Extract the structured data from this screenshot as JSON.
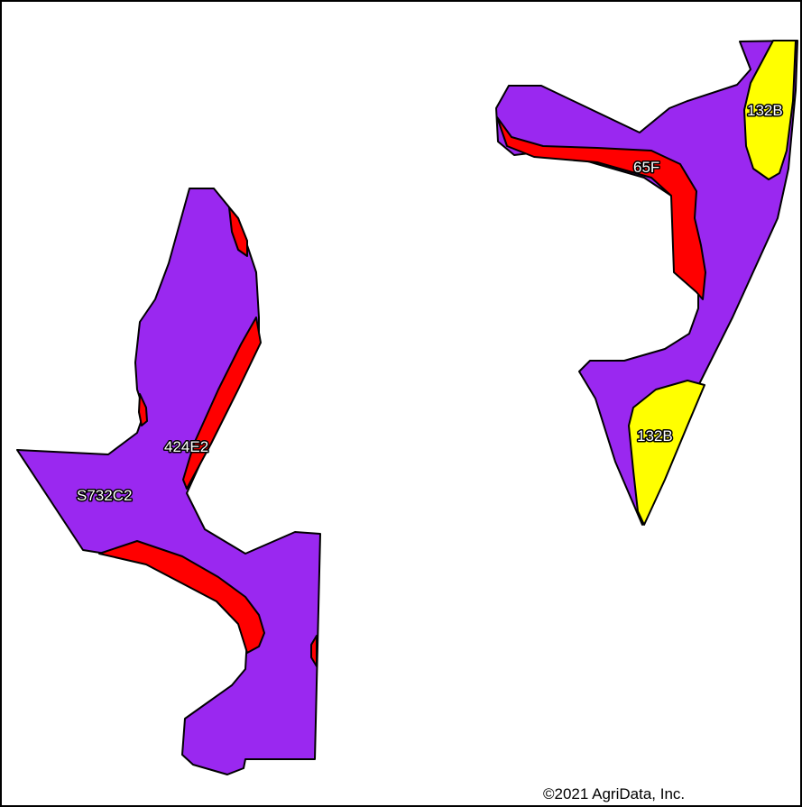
{
  "map": {
    "colors": {
      "primary_unit": "#9a28f0",
      "red_unit": "#ff0000",
      "yellow_unit": "#ffff00",
      "outline": "#000000",
      "background": "#ffffff"
    },
    "labels": {
      "west_field_1": "424E2",
      "west_field_2": "S732C2",
      "east_field_1": "65F",
      "east_field_2": "132B",
      "east_field_3": "132B"
    },
    "copyright": "©2021 AgriData, Inc."
  }
}
